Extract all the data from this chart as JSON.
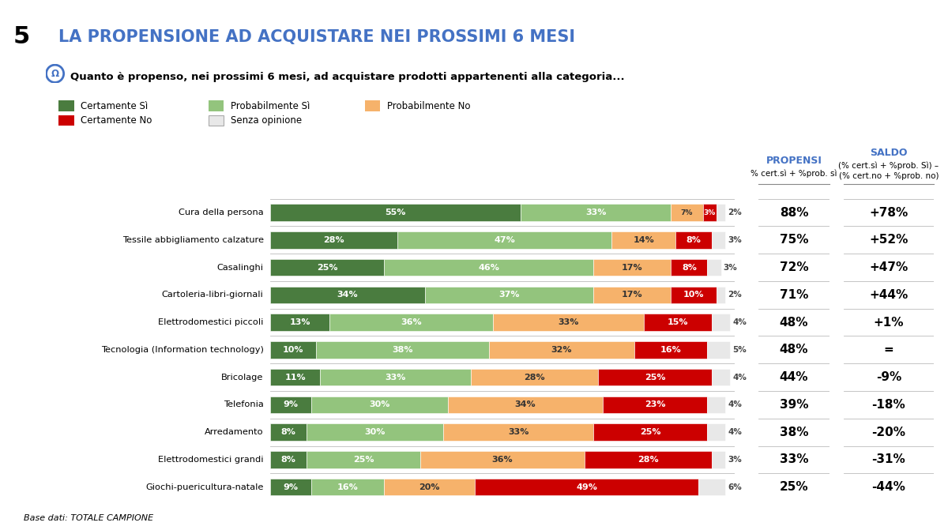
{
  "title": "LA PROPENSIONE AD ACQUISTARE NEI PROSSIMI 6 MESI",
  "slide_number": "5",
  "subtitle": "Quanto è propenso, nei prossimi 6 mesi, ad acquistare prodotti appartenenti alla categoria...",
  "categories": [
    "Cura della persona",
    "Tessile abbigliamento calzature",
    "Casalinghi",
    "Cartoleria-libri-giornali",
    "Elettrodomestici piccoli",
    "Tecnologia (Information technology)",
    "Bricolage",
    "Telefonia",
    "Arredamento",
    "Elettrodomestici grandi",
    "Giochi-puericultura-natale"
  ],
  "cert_si": [
    55,
    28,
    25,
    34,
    13,
    10,
    11,
    9,
    8,
    8,
    9
  ],
  "prob_si": [
    33,
    47,
    46,
    37,
    36,
    38,
    33,
    30,
    30,
    25,
    16
  ],
  "prob_no": [
    7,
    14,
    17,
    17,
    33,
    32,
    28,
    34,
    33,
    36,
    20
  ],
  "cert_no": [
    3,
    8,
    8,
    10,
    15,
    16,
    25,
    23,
    25,
    28,
    49
  ],
  "senza": [
    2,
    3,
    3,
    2,
    4,
    5,
    4,
    4,
    4,
    3,
    6
  ],
  "propensi": [
    "88%",
    "75%",
    "72%",
    "71%",
    "48%",
    "48%",
    "44%",
    "39%",
    "38%",
    "33%",
    "25%"
  ],
  "saldo": [
    "+78%",
    "+52%",
    "+47%",
    "+44%",
    "+1%",
    "=",
    "-9%",
    "-18%",
    "-20%",
    "-31%",
    "-44%"
  ],
  "color_cert_si": "#4a7c3f",
  "color_prob_si": "#93c47d",
  "color_prob_no": "#f6b26b",
  "color_cert_no": "#cc0000",
  "color_senza": "#e8e8e8",
  "bg_color": "#ffffff",
  "header_bar_color": "#4472c4",
  "title_color": "#4472c4",
  "footer": "Base dati: TOTALE CAMPIONE",
  "legend_labels": [
    "Certamente Sì",
    "Probabilmente Sì",
    "Probabilmente No",
    "Certamente No",
    "Senza opinione"
  ],
  "propensi_label": "PROPENSI",
  "propensi_sublabel": "% cert.sì + %prob. sì",
  "saldo_label": "SALDO",
  "saldo_sublabel1": "(% cert.sì + %prob. Sì) –",
  "saldo_sublabel2": "(% cert.no + %prob. no)"
}
